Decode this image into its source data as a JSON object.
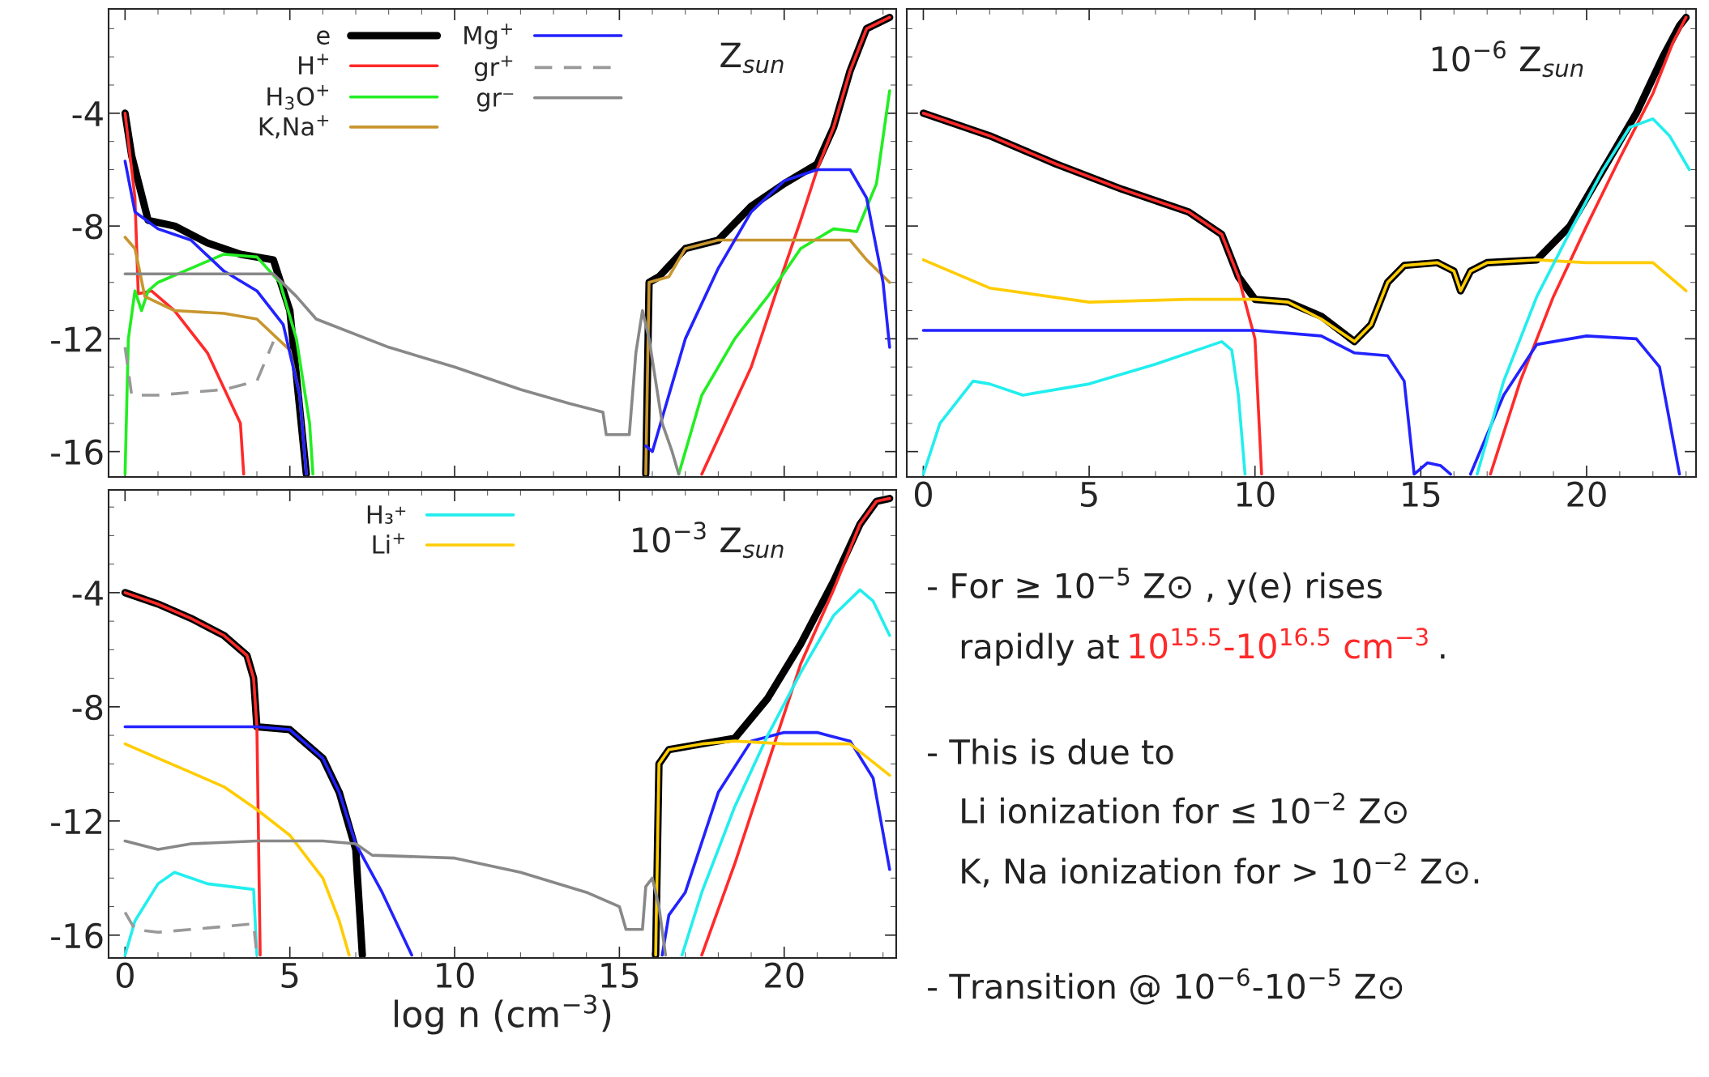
{
  "chart_data": [
    {
      "type": "line",
      "title": "Z$_{sun}$",
      "xlim": [
        -0.5,
        23.4
      ],
      "ylim": [
        -16.9,
        -0.3
      ],
      "xticks": [
        0,
        5,
        10,
        15,
        20
      ],
      "yticks": [
        -4,
        -8,
        -12,
        -16
      ],
      "tick_labels": "y",
      "legend": "top",
      "series": [
        {
          "name": "e",
          "color": "#000000",
          "x": [
            0,
            0.2,
            0.7,
            1.5,
            2.5,
            3.5,
            4.5,
            5.0,
            5.5,
            10,
            15.8,
            15.9,
            16.2,
            17,
            18,
            19,
            20,
            21,
            21.5,
            22,
            22.5,
            23.2
          ],
          "values": [
            -4,
            -5.5,
            -7.8,
            -8.0,
            -8.6,
            -9.0,
            -9.2,
            -11,
            -16.8,
            null,
            -16.8,
            -10,
            -9.8,
            -8.8,
            -8.5,
            -7.3,
            -6.5,
            -5.8,
            -4.5,
            -2.5,
            -1.0,
            -0.6
          ]
        },
        {
          "name": "H$^{+}$",
          "color": "#ff2a2a",
          "x": [
            0,
            0.3,
            0.4,
            0.8,
            1.5,
            2.5,
            3.5,
            3.6,
            10,
            17.5,
            19,
            20,
            20.5,
            21,
            21.5,
            22,
            22.5,
            23.2
          ],
          "values": [
            -4,
            -7,
            -10.4,
            -10.3,
            -11,
            -12.5,
            -15,
            -16.8,
            null,
            -16.8,
            -13,
            -9.5,
            -7.8,
            -6,
            -4.5,
            -2.5,
            -1,
            -0.6
          ]
        },
        {
          "name": "H$_{3}$O$^{+}$",
          "color": "#22ee22",
          "x": [
            0,
            0.1,
            0.3,
            0.5,
            0.7,
            1,
            2,
            3,
            4,
            4.7,
            5.2,
            5.6,
            5.7,
            10,
            16.8,
            17.5,
            18.5,
            19.5,
            20.5,
            21.5,
            22.2,
            22.8,
            23.2
          ],
          "values": [
            -16.8,
            -12,
            -10.3,
            -11,
            -10.3,
            -10,
            -9.5,
            -9,
            -9.1,
            -10,
            -12,
            -15,
            -16.8,
            null,
            -16.8,
            -14,
            -12,
            -10.5,
            -8.8,
            -8.1,
            -8.2,
            -6.5,
            -3.2
          ]
        },
        {
          "name": "K,Na$^{+}$",
          "color": "#c8962e",
          "x": [
            0,
            0.3,
            0.6,
            1.5,
            3,
            4,
            5,
            5.3,
            5.5,
            10,
            15.8,
            15.9,
            16.5,
            17,
            18,
            20,
            22,
            22.5,
            23.2
          ],
          "values": [
            -8.4,
            -8.8,
            -10.5,
            -11,
            -11.1,
            -11.3,
            -12.4,
            -14,
            -16.8,
            null,
            -16.8,
            -10,
            -9.8,
            -8.8,
            -8.5,
            -8.5,
            -8.5,
            -9.2,
            -10
          ]
        },
        {
          "name": "Mg$^{+}$",
          "color": "#2222ff",
          "x": [
            0,
            0.3,
            1,
            2,
            3,
            4,
            4.8,
            5.3,
            5.5,
            10,
            15.8,
            16,
            17,
            18,
            19,
            20,
            21,
            22,
            22.5,
            23,
            23.2
          ],
          "values": [
            -5.7,
            -7.5,
            -8.1,
            -8.5,
            -9.6,
            -10.3,
            -11.5,
            -14,
            -16.8,
            null,
            -15.8,
            -16.0,
            -12,
            -9.5,
            -7.5,
            -6.4,
            -6,
            -6,
            -7,
            -10,
            -12.3
          ]
        },
        {
          "name": "gr$^{+}$",
          "color": "#999999",
          "line_style": "dashed",
          "x": [
            0,
            0.2,
            1,
            2,
            3,
            4,
            4.5
          ],
          "values": [
            -12.3,
            -14,
            -14,
            -13.9,
            -13.8,
            -13.5,
            -12.1
          ]
        },
        {
          "name": "gr⁻",
          "color": "#888888",
          "x": [
            0,
            4.5,
            5.2,
            5.8,
            8,
            10,
            12,
            13.5,
            14.5,
            14.6,
            15.3,
            15.5,
            15.7,
            15.9,
            16.3,
            16.6,
            16.8
          ],
          "values": [
            -9.7,
            -9.7,
            -10.5,
            -11.3,
            -12.3,
            -13,
            -13.8,
            -14.3,
            -14.6,
            -15.4,
            -15.4,
            -12.5,
            -11,
            -12,
            -15,
            -16,
            -16.8
          ]
        }
      ]
    },
    {
      "type": "line",
      "title": "10$^{−6}$ Z$_{sun}$",
      "xlim": [
        -0.5,
        23.3
      ],
      "ylim": [
        -16.9,
        -0.3
      ],
      "xticks": [
        0,
        5,
        10,
        15,
        20
      ],
      "yticks": [
        -4,
        -8,
        -12,
        -16
      ],
      "tick_labels": "x",
      "series": [
        {
          "color": "#000000",
          "x": [
            0,
            2,
            4,
            6,
            8,
            9,
            9.5,
            10,
            11,
            12,
            13,
            13.5,
            14,
            14.5,
            15.5,
            16,
            16.2,
            16.5,
            17,
            18.5,
            19.5,
            20.5,
            21.5,
            22.3,
            22.8,
            23
          ],
          "values": [
            -4,
            -4.8,
            -5.8,
            -6.7,
            -7.5,
            -8.3,
            -9.8,
            -10.6,
            -10.7,
            -11.2,
            -12.1,
            -11.5,
            -10,
            -9.4,
            -9.3,
            -9.6,
            -10.3,
            -9.6,
            -9.3,
            -9.2,
            -8,
            -6,
            -4,
            -2,
            -0.9,
            -0.6
          ]
        },
        {
          "color": "#ff2a2a",
          "x": [
            0,
            2,
            4,
            6,
            8,
            9,
            9.5,
            10,
            10.2,
            14,
            17.1,
            18,
            19,
            20,
            21,
            22,
            22.6,
            23
          ],
          "values": [
            -4,
            -4.8,
            -5.8,
            -6.7,
            -7.5,
            -8.3,
            -9.8,
            -12,
            -16.8,
            null,
            -16.8,
            -13.5,
            -10.5,
            -8,
            -5.6,
            -3.3,
            -1.5,
            -0.6
          ]
        },
        {
          "color": "#ffcc00",
          "x": [
            0,
            2,
            5,
            8,
            10,
            11,
            12,
            13,
            13.5,
            14,
            14.5,
            15.5,
            16,
            16.2,
            16.5,
            17,
            18.5,
            20,
            22,
            23
          ],
          "values": [
            -9.2,
            -10.2,
            -10.7,
            -10.6,
            -10.6,
            -10.7,
            -11.3,
            -12.1,
            -11.5,
            -10,
            -9.4,
            -9.3,
            -9.6,
            -10.3,
            -9.6,
            -9.3,
            -9.2,
            -9.3,
            -9.3,
            -10.3
          ]
        },
        {
          "color": "#2222ff",
          "x": [
            0,
            10,
            12,
            13,
            14,
            14.5,
            14.8,
            15.2,
            15.6,
            15.9,
            16.2,
            16.5,
            17.5,
            18.5,
            20,
            21.5,
            22.2,
            22.8
          ],
          "values": [
            -11.7,
            -11.7,
            -11.9,
            -12.5,
            -12.6,
            -13.5,
            -16.8,
            -16.4,
            -16.5,
            -16.8,
            null,
            -16.8,
            -14,
            -12.2,
            -11.9,
            -12,
            -13,
            -16.8
          ]
        },
        {
          "color": "#22eeee",
          "x": [
            0,
            0.5,
            1.5,
            2,
            3,
            5,
            7,
            9,
            9.3,
            9.5,
            9.7,
            13,
            16.7,
            17.5,
            18.5,
            19.5,
            20.5,
            21.3,
            22,
            22.5,
            23.1
          ],
          "values": [
            -16.8,
            -15,
            -13.5,
            -13.6,
            -14,
            -13.6,
            -12.9,
            -12.1,
            -12.4,
            -14,
            -16.8,
            null,
            -16.8,
            -13.5,
            -10.5,
            -8.2,
            -6,
            -4.5,
            -4.2,
            -4.8,
            -6
          ]
        }
      ]
    },
    {
      "type": "line",
      "title": "10$^{−3}$ Z$_{sun}$",
      "xlabel": "log n (cm$^{−3}$)",
      "xlim": [
        -0.5,
        23.4
      ],
      "ylim": [
        -16.8,
        -0.4
      ],
      "xticks": [
        0,
        5,
        10,
        15,
        20
      ],
      "yticks": [
        -4,
        -8,
        -12,
        -16
      ],
      "legend": "top",
      "series": [
        {
          "color": "#000000",
          "x": [
            0,
            1,
            2,
            3,
            3.7,
            3.9,
            4,
            5,
            6,
            6.5,
            7,
            7.2,
            12,
            16.1,
            16.2,
            16.5,
            17.5,
            18.5,
            19.5,
            20.5,
            21.5,
            22.3,
            22.8,
            23.2
          ],
          "values": [
            -4,
            -4.4,
            -4.9,
            -5.5,
            -6.2,
            -7,
            -8.7,
            -8.8,
            -9.8,
            -11,
            -13,
            -16.7,
            null,
            -16.7,
            -10,
            -9.5,
            -9.3,
            -9.1,
            -7.7,
            -5.8,
            -3.6,
            -1.6,
            -0.8,
            -0.7
          ]
        },
        {
          "color": "#ff2a2a",
          "x": [
            0,
            1,
            2,
            3,
            3.7,
            3.9,
            4,
            4.1,
            10,
            17.5,
            18.5,
            19.5,
            20.5,
            21.5,
            22.3,
            22.8,
            23.2
          ],
          "values": [
            -4,
            -4.4,
            -4.9,
            -5.5,
            -6.2,
            -7,
            -8.7,
            -16.7,
            null,
            -16.7,
            -13.5,
            -10,
            -6.5,
            -3.9,
            -1.6,
            -0.8,
            -0.7
          ]
        },
        {
          "color": "#2222ff",
          "x": [
            0,
            4,
            5,
            6,
            6.5,
            7,
            7.8,
            8.7,
            12,
            16.3,
            16.5,
            17,
            18,
            19,
            20,
            21,
            22,
            22.7,
            23.2
          ],
          "values": [
            -8.7,
            -8.7,
            -8.8,
            -9.8,
            -11,
            -12.8,
            -14.5,
            -16.7,
            null,
            -16.7,
            -15.3,
            -14.5,
            -11,
            -9.2,
            -8.9,
            -8.9,
            -9.2,
            -10.5,
            -13.7
          ]
        },
        {
          "name": "H₃⁺",
          "color": "#22eeee",
          "x": [
            0,
            0.3,
            1,
            1.5,
            2.5,
            3.9,
            4,
            10,
            16.9,
            17.5,
            18.5,
            19.5,
            20.5,
            21.5,
            22.3,
            22.7,
            23.2
          ],
          "values": [
            -16.7,
            -15.5,
            -14.2,
            -13.8,
            -14.2,
            -14.4,
            -16.7,
            null,
            -16.7,
            -14.5,
            -11.5,
            -9,
            -6.8,
            -4.8,
            -3.9,
            -4.3,
            -5.5
          ]
        },
        {
          "name": "Li$^{+}$",
          "color": "#ffcc00",
          "x": [
            0,
            1,
            2,
            3,
            4,
            5,
            6,
            6.5,
            6.8,
            12,
            16.1,
            16.2,
            16.5,
            17.5,
            18.5,
            20,
            22,
            23.2
          ],
          "values": [
            -9.3,
            -9.8,
            -10.3,
            -10.8,
            -11.6,
            -12.5,
            -14,
            -15.5,
            -16.7,
            null,
            -16.7,
            -10,
            -9.5,
            -9.3,
            -9.2,
            -9.3,
            -9.3,
            -10.4
          ]
        },
        {
          "color": "#999999",
          "line_style": "dashed",
          "x": [
            0,
            0.3,
            1,
            2,
            3,
            3.9,
            4
          ],
          "values": [
            -15.2,
            -15.8,
            -15.9,
            -15.8,
            -15.7,
            -15.6,
            -16.7
          ]
        },
        {
          "color": "#888888",
          "x": [
            0,
            1,
            2,
            4,
            6,
            7,
            7.5,
            10,
            12,
            14,
            15,
            15.2,
            15.7,
            15.8,
            16,
            16.2,
            16.4
          ],
          "values": [
            -12.7,
            -13,
            -12.8,
            -12.7,
            -12.7,
            -12.8,
            -13.2,
            -13.3,
            -13.8,
            -14.5,
            -15,
            -15.8,
            -15.8,
            -14.3,
            -14,
            -15,
            -16.7
          ]
        }
      ]
    },
    {
      "type": "other",
      "annotations": [
        "- For ≥ 10$^{−5}$ Z⊙ , y(e) rises",
        "rapidly at",
        "10$^{15.5}$-10$^{16.5}$ cm$^{−3}$",
        ".",
        "- This is due to",
        "Li ionization for ≤ 10$^{−2}$ Z⊙",
        "K, Na ionization for > 10$^{−2}$ Z⊙.",
        "- Transition @ 10$^{−6}$-10$^{−5}$ Z⊙"
      ],
      "colors": [
        "#222222",
        "#222222",
        "#ff2a2a",
        "#222222",
        "#222222",
        "#222222",
        "#222222",
        "#222222"
      ]
    }
  ]
}
